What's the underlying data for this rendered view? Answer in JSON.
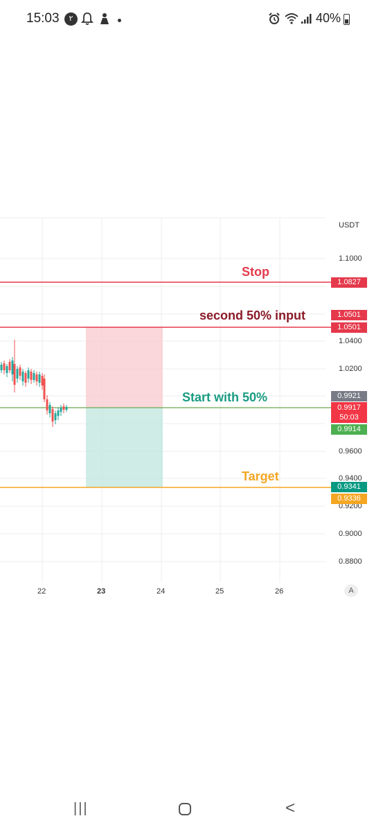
{
  "status_bar": {
    "time": "15:03",
    "notification_badge": "٢",
    "battery": "40%",
    "icons": [
      "notification-badge-icon",
      "bell-icon",
      "app-icon",
      "dot-icon",
      "alarm-icon",
      "wifi-icon",
      "signal-icon",
      "battery-icon"
    ]
  },
  "chart": {
    "currency": "USDT",
    "axis_ticks": [
      "1.1000",
      "1.0400",
      "1.0200",
      "0.9600",
      "0.9400",
      "0.9200",
      "0.9000",
      "0.8800"
    ],
    "x_ticks": [
      "22",
      "23",
      "24",
      "25",
      "26"
    ],
    "auto_button": "A",
    "annotations": {
      "stop": "Stop",
      "second": "second 50% input",
      "start": "Start with 50%",
      "target": "Target"
    },
    "price_labels": {
      "stop": "1.0827",
      "second_a": "1.0501",
      "second_b": "1.0501",
      "current_a": "0.9921",
      "current_b": "0.9917",
      "countdown": "50:03",
      "entry": "0.9914",
      "target_a": "0.9341",
      "target_b": "0.9336"
    },
    "colors": {
      "stop": "#e5394b",
      "second": "#8b1a28",
      "start": "#1a9c82",
      "target": "#f5a623",
      "loss_zone": "#f8c9cf",
      "profit_zone": "#bfe6de"
    }
  },
  "nav_bar": {
    "recents": "|||",
    "home": "○",
    "back": "<"
  }
}
